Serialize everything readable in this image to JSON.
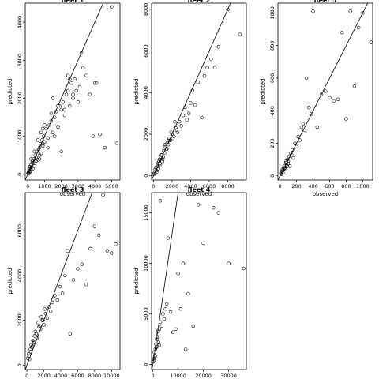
{
  "chart_data": [
    {
      "type": "scatter",
      "title": "fleet 1",
      "xlabel": "observed",
      "ylabel": "predicted",
      "xlim": [
        -150,
        5500
      ],
      "ylim": [
        -150,
        4500
      ],
      "x_ticks": [
        0,
        1000,
        2000,
        3000,
        4000,
        5000
      ],
      "y_ticks": [
        0,
        1000,
        2000,
        3000,
        4000
      ],
      "line": {
        "intercept": 0,
        "slope": 1
      },
      "x": [
        20,
        40,
        60,
        80,
        100,
        120,
        150,
        180,
        200,
        230,
        260,
        300,
        350,
        400,
        450,
        500,
        550,
        600,
        650,
        700,
        750,
        800,
        850,
        900,
        950,
        1000,
        1100,
        1200,
        1300,
        1400,
        1500,
        1600,
        1700,
        1800,
        1900,
        2000,
        2100,
        2200,
        2300,
        2400,
        2500,
        2600,
        2700,
        2800,
        2900,
        3000,
        3100,
        3300,
        3500,
        3700,
        3900,
        4100,
        4300,
        4600,
        5000,
        5300,
        100,
        200,
        300,
        400,
        500,
        600,
        700,
        800,
        900,
        1000,
        1200,
        1400,
        1600,
        2000,
        2500,
        3200,
        1500,
        1800,
        2400,
        2200,
        900,
        700,
        300,
        150,
        60,
        2700,
        4000
      ],
      "y": [
        30,
        50,
        80,
        100,
        150,
        60,
        200,
        120,
        250,
        180,
        300,
        350,
        400,
        220,
        500,
        450,
        600,
        380,
        650,
        700,
        800,
        550,
        900,
        750,
        1000,
        850,
        1200,
        950,
        1300,
        1400,
        1100,
        1500,
        1650,
        1250,
        1800,
        1700,
        1900,
        1550,
        2100,
        2200,
        1800,
        2400,
        2000,
        2500,
        2200,
        1900,
        2300,
        2800,
        2600,
        2100,
        1000,
        2400,
        1050,
        700,
        4400,
        820,
        200,
        400,
        150,
        600,
        350,
        900,
        500,
        1100,
        800,
        1300,
        700,
        1600,
        1000,
        600,
        2500,
        3200,
        2000,
        1800,
        2600,
        1700,
        1200,
        400,
        300,
        80,
        20,
        2100,
        2400
      ],
      "series_points_count": 83
    },
    {
      "type": "scatter",
      "title": "fleet 2",
      "xlabel": "observed",
      "ylabel": "predicted",
      "xlim": [
        -200,
        10000
      ],
      "ylim": [
        -200,
        8300
      ],
      "x_ticks": [
        0,
        2000,
        4000,
        6000,
        8000
      ],
      "y_ticks": [
        0,
        2000,
        4000,
        6000,
        8000
      ],
      "line": {
        "intercept": 0,
        "slope": 1
      },
      "x": [
        50,
        100,
        200,
        300,
        400,
        500,
        600,
        700,
        800,
        900,
        1000,
        1100,
        1200,
        1300,
        1400,
        1500,
        1600,
        1700,
        1800,
        2000,
        2200,
        2400,
        2600,
        2800,
        3000,
        3200,
        3400,
        3600,
        3800,
        4000,
        4200,
        4500,
        4800,
        5200,
        5500,
        5800,
        6200,
        6600,
        7000,
        8000,
        9300,
        150,
        250,
        350,
        450,
        550,
        650,
        750,
        850,
        950,
        1050,
        1250,
        1450,
        1650,
        1900,
        2100,
        2300,
        2500
      ],
      "y": [
        80,
        150,
        300,
        250,
        500,
        450,
        700,
        600,
        900,
        1000,
        800,
        1200,
        1100,
        1400,
        1300,
        1600,
        1500,
        1800,
        1700,
        2000,
        1900,
        2300,
        2100,
        2600,
        2400,
        2900,
        3300,
        2700,
        3000,
        3500,
        4100,
        3400,
        4500,
        2800,
        4800,
        5200,
        5600,
        5200,
        6200,
        8000,
        6800,
        100,
        400,
        200,
        600,
        350,
        800,
        550,
        1000,
        700,
        900,
        1500,
        1300,
        1700,
        2100,
        1800,
        2600,
        2200
      ]
    },
    {
      "type": "scatter",
      "title": "fleet 5",
      "xlabel": "observed",
      "ylabel": "predicted",
      "xlim": [
        -25,
        1120
      ],
      "ylim": [
        -25,
        1060
      ],
      "x_ticks": [
        0,
        200,
        400,
        600,
        800,
        1000
      ],
      "y_ticks": [
        0,
        200,
        400,
        600,
        800,
        1000
      ],
      "line": {
        "intercept": 0,
        "slope": 1
      },
      "x": [
        10,
        20,
        30,
        40,
        50,
        60,
        70,
        80,
        90,
        100,
        110,
        120,
        130,
        150,
        160,
        180,
        200,
        220,
        240,
        260,
        280,
        300,
        320,
        350,
        380,
        400,
        450,
        500,
        550,
        600,
        650,
        700,
        750,
        800,
        850,
        900,
        950,
        1000,
        1100,
        15,
        25,
        35,
        45,
        55,
        65,
        75,
        85,
        95,
        140
      ],
      "y": [
        15,
        25,
        40,
        35,
        60,
        50,
        80,
        70,
        100,
        90,
        120,
        60,
        140,
        160,
        110,
        200,
        180,
        240,
        220,
        300,
        320,
        280,
        600,
        420,
        380,
        1010,
        300,
        500,
        520,
        480,
        460,
        470,
        880,
        350,
        1010,
        550,
        910,
        1000,
        820,
        10,
        30,
        20,
        50,
        45,
        40,
        90,
        60,
        75,
        130
      ]
    },
    {
      "type": "scatter",
      "title": "fleet 3",
      "xlabel": "observed",
      "ylabel": "predicted",
      "xlim": [
        -200,
        11000
      ],
      "ylim": [
        -200,
        7700
      ],
      "x_ticks": [
        0,
        2000,
        4000,
        6000,
        8000,
        10000
      ],
      "y_ticks": [
        0,
        2000,
        4000,
        6000
      ],
      "line": {
        "intercept": 0,
        "slope": 1
      },
      "x": [
        100,
        200,
        300,
        400,
        500,
        600,
        700,
        800,
        900,
        1000,
        1200,
        1400,
        1600,
        1800,
        2000,
        2200,
        2400,
        2600,
        2800,
        3000,
        3300,
        3600,
        3900,
        4200,
        4500,
        4800,
        5100,
        5500,
        6000,
        6500,
        7000,
        7500,
        8000,
        8500,
        9000,
        9500,
        10000,
        10500,
        250,
        450,
        650,
        850,
        1100,
        1300,
        1500,
        1700,
        1900,
        2100
      ],
      "y": [
        300,
        500,
        250,
        700,
        900,
        800,
        1100,
        1000,
        1300,
        1500,
        1200,
        1700,
        1600,
        2000,
        1800,
        2300,
        2100,
        2600,
        2400,
        2800,
        3100,
        2900,
        3500,
        3200,
        4000,
        5100,
        1400,
        3800,
        4300,
        4500,
        3600,
        5200,
        6200,
        5800,
        7600,
        5100,
        5000,
        5400,
        400,
        600,
        850,
        1050,
        1400,
        1900,
        1750,
        2150,
        2000,
        2500
      ]
    },
    {
      "type": "scatter",
      "title": "fleet 4",
      "xlabel": "observed",
      "ylabel": "predicted",
      "xlim": [
        -500,
        37000
      ],
      "ylim": [
        -500,
        17000
      ],
      "x_ticks": [
        0,
        10000,
        20000,
        30000
      ],
      "y_ticks": [
        0,
        5000,
        10000,
        15000
      ],
      "line": {
        "intercept": 0,
        "slope": 1.7
      },
      "x": [
        200,
        400,
        600,
        800,
        1000,
        1200,
        1500,
        1800,
        2000,
        2300,
        2600,
        3000,
        3500,
        4000,
        4500,
        5000,
        5500,
        6000,
        7000,
        8000,
        9000,
        10000,
        11000,
        12000,
        13000,
        14000,
        16000,
        18000,
        20000,
        24000,
        26000,
        30000,
        36000,
        500,
        900,
        1300,
        1700,
        2100,
        2500,
        2900
      ],
      "y": [
        300,
        600,
        1200,
        900,
        1500,
        2000,
        2500,
        1800,
        3000,
        2200,
        3500,
        4200,
        3800,
        5000,
        4500,
        5500,
        6000,
        12500,
        5200,
        3200,
        3500,
        9000,
        5500,
        10000,
        1500,
        7000,
        3800,
        15800,
        12000,
        15500,
        15000,
        10000,
        9500,
        400,
        800,
        1700,
        2700,
        3300,
        1900,
        16200
      ]
    }
  ]
}
